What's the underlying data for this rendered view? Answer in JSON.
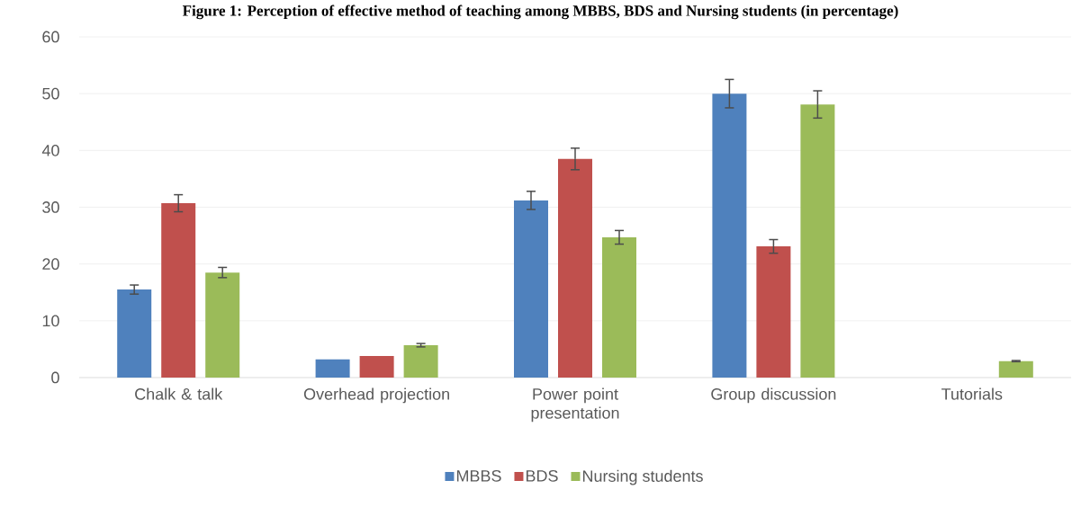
{
  "chart_data": {
    "type": "bar",
    "title": "Figure 1: Perception of effective method of teaching among MBBS, BDS and Nursing students (in percentage)",
    "categories": [
      "Chalk & talk",
      "Overhead projection",
      "Power point presentation",
      "Group discussion",
      "Tutorials"
    ],
    "series": [
      {
        "name": "MBBS",
        "color": "#4f81bd",
        "values": [
          15.5,
          3.2,
          31.2,
          50,
          0
        ],
        "errors": [
          0.8,
          null,
          1.6,
          2.5,
          null
        ]
      },
      {
        "name": "BDS",
        "color": "#c0504d",
        "values": [
          30.7,
          3.8,
          38.5,
          23.1,
          0
        ],
        "errors": [
          1.5,
          null,
          1.9,
          1.2,
          null
        ]
      },
      {
        "name": "Nursing students",
        "color": "#9bbb59",
        "values": [
          18.5,
          5.7,
          24.7,
          48.1,
          2.9
        ],
        "errors": [
          0.9,
          0.3,
          1.2,
          2.4,
          0.1
        ]
      }
    ],
    "ylim": [
      0,
      60
    ],
    "yticks": [
      0,
      10,
      20,
      30,
      40,
      50,
      60
    ],
    "grid": "y",
    "legend": "bottom"
  }
}
